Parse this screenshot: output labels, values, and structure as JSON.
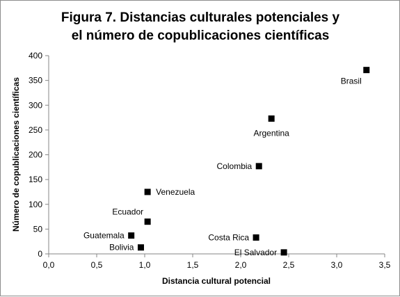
{
  "chart_data": {
    "type": "scatter",
    "title_lines": [
      "Figura 7. Distancias culturales potenciales y",
      "el número de copublicaciones científicas"
    ],
    "xlabel": "Distancia cultural potencial",
    "ylabel": "Número de copublicaciones científicas",
    "xlim": [
      0,
      3.5
    ],
    "ylim": [
      0,
      400
    ],
    "x_ticks": [
      0,
      0.5,
      1.0,
      1.5,
      2.0,
      2.5,
      3.0,
      3.5
    ],
    "x_tick_labels": [
      "0,0",
      "0,5",
      "1,0",
      "1,5",
      "2,0",
      "2,5",
      "3,0",
      "3,5"
    ],
    "y_ticks": [
      0,
      50,
      100,
      150,
      200,
      250,
      300,
      350,
      400
    ],
    "y_tick_labels": [
      "0",
      "50",
      "100",
      "150",
      "200",
      "250",
      "300",
      "350",
      "400"
    ],
    "grid": false,
    "marker": "square",
    "marker_color": "#000000",
    "points": [
      {
        "label": "Brasil",
        "x": 3.31,
        "y": 371,
        "label_pos": "below-left"
      },
      {
        "label": "Argentina",
        "x": 2.32,
        "y": 273,
        "label_pos": "below"
      },
      {
        "label": "Colombia",
        "x": 2.19,
        "y": 177,
        "label_pos": "left"
      },
      {
        "label": "Venezuela",
        "x": 1.03,
        "y": 125,
        "label_pos": "right"
      },
      {
        "label": "Ecuador",
        "x": 1.03,
        "y": 65,
        "label_pos": "above-left"
      },
      {
        "label": "Guatemala",
        "x": 0.86,
        "y": 37,
        "label_pos": "left"
      },
      {
        "label": "Bolivia",
        "x": 0.96,
        "y": 13,
        "label_pos": "left"
      },
      {
        "label": "Costa Rica",
        "x": 2.16,
        "y": 33,
        "label_pos": "left"
      },
      {
        "label": "El Salvador",
        "x": 2.45,
        "y": 3,
        "label_pos": "left"
      }
    ]
  }
}
